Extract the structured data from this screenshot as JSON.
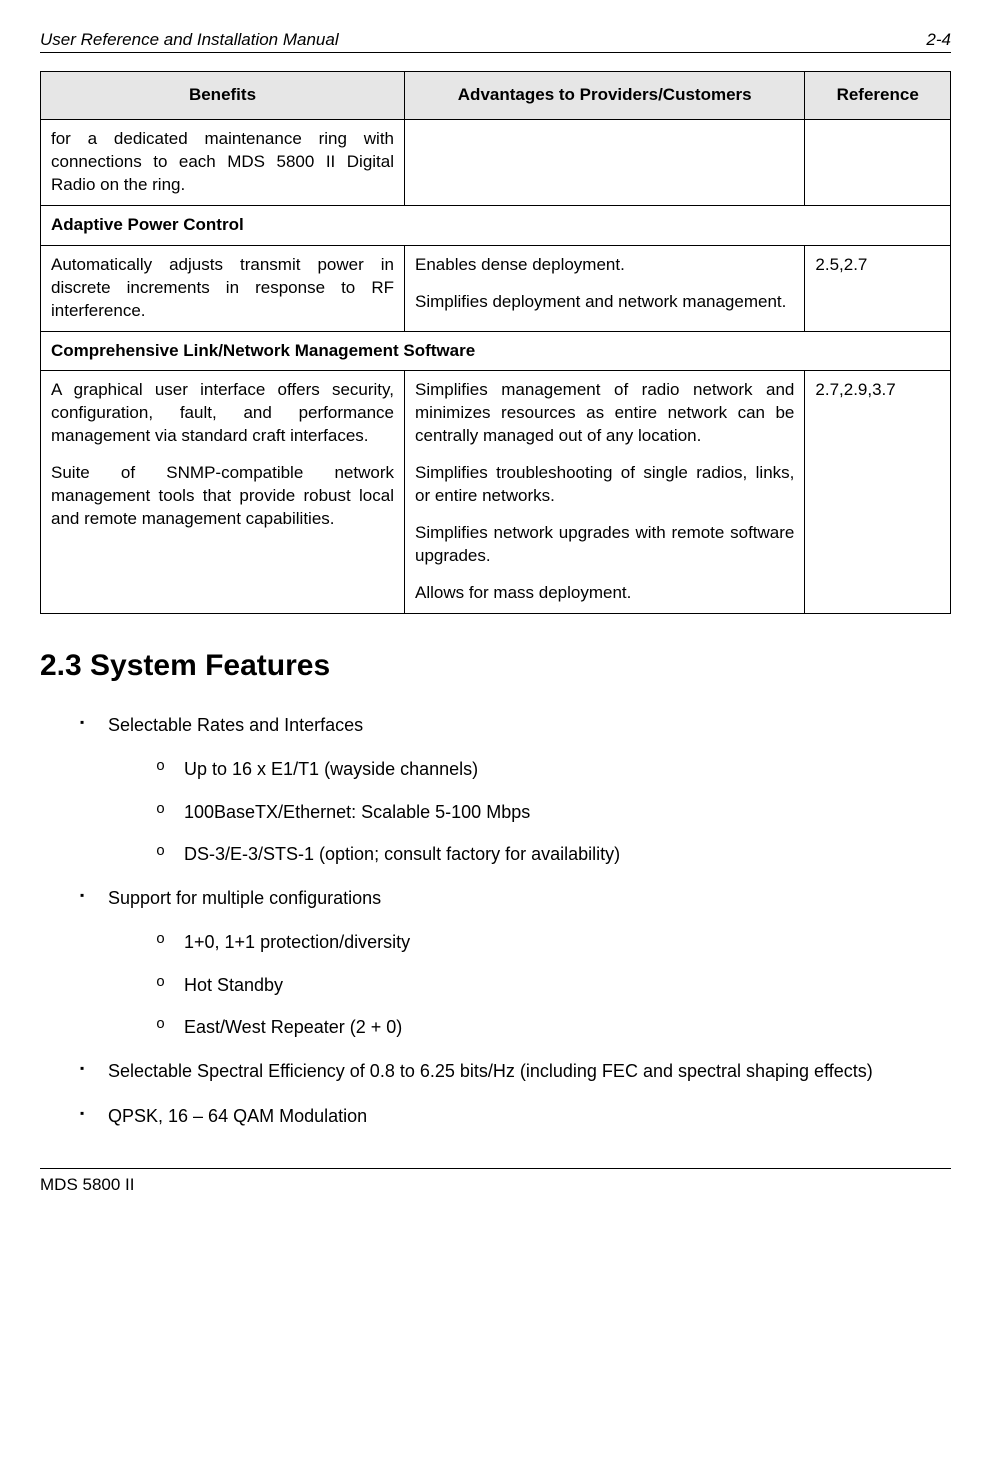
{
  "header": {
    "left": "User Reference and Installation Manual",
    "right": "2-4"
  },
  "table": {
    "headers": [
      "Benefits",
      "Advantages to Providers/Customers",
      "Reference"
    ],
    "rows": [
      {
        "type": "data",
        "c1": "for a dedicated maintenance ring with connections to each MDS 5800 II Digital Radio on the ring.",
        "c2": "",
        "c3": ""
      },
      {
        "type": "section",
        "text": "Adaptive Power Control"
      },
      {
        "type": "data",
        "c1": "Automatically adjusts transmit power in discrete increments in response to RF interference.",
        "c2a": "Enables dense deployment.",
        "c2b": "Simplifies deployment and network management.",
        "c3": "2.5,2.7"
      },
      {
        "type": "section",
        "text": "Comprehensive Link/Network Management Software"
      },
      {
        "type": "data",
        "c1a": "A graphical user interface offers security, configuration, fault, and performance management via standard craft interfaces.",
        "c1b": "Suite of SNMP-compatible network management tools that provide robust local and remote management capabilities.",
        "c2a": "Simplifies management of radio network and minimizes resources as entire network can be centrally managed out of any location.",
        "c2b": "Simplifies troubleshooting of single radios, links, or entire networks.",
        "c2c": "Simplifies network upgrades with remote software upgrades.",
        "c2d": "Allows for mass deployment.",
        "c3": "2.7,2.9,3.7"
      }
    ]
  },
  "heading": "2.3 System Features",
  "features": [
    {
      "text": "Selectable Rates and Interfaces",
      "sub": [
        "Up to 16 x E1/T1 (wayside channels)",
        "100BaseTX/Ethernet: Scalable 5-100 Mbps",
        "DS-3/E-3/STS-1 (option; consult factory for availability)"
      ]
    },
    {
      "text": "Support for multiple configurations",
      "sub": [
        "1+0, 1+1 protection/diversity",
        "Hot Standby",
        "East/West Repeater (2 + 0)"
      ]
    },
    {
      "text": "Selectable Spectral Efficiency of 0.8 to 6.25 bits/Hz (including FEC and spectral shaping effects)"
    },
    {
      "text": "QPSK, 16 – 64 QAM Modulation"
    }
  ],
  "footer": "MDS 5800 II"
}
